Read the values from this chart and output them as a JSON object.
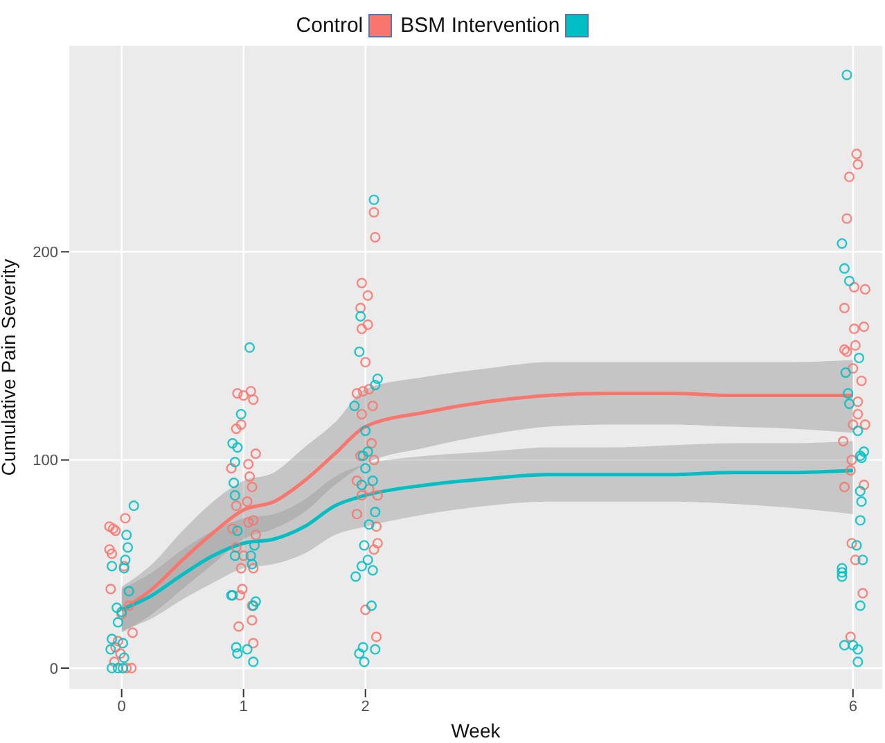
{
  "chart_data": {
    "type": "scatter",
    "xlabel": "Week",
    "ylabel": "Cumulative Pain Severity",
    "xlim": [
      -0.43,
      6.24
    ],
    "ylim": [
      -10,
      299
    ],
    "xticks": [
      0,
      1,
      2,
      6
    ],
    "yticks": [
      0,
      100,
      200
    ],
    "grid": true,
    "legend": "top",
    "marker": "circle",
    "series": [
      {
        "name": "Control",
        "color": "#f8766d",
        "x": [
          0.03,
          -0.1,
          -0.07,
          -0.05,
          -0.1,
          -0.08,
          0.02,
          -0.09,
          0.06,
          0,
          0.09,
          -0.03,
          -0.05,
          -0.01,
          -0.06,
          0.08,
          0.04,
          0.95,
          1.06,
          1,
          1.08,
          0.98,
          0.94,
          1.1,
          0.9,
          1.04,
          1.05,
          1.07,
          1.03,
          0.94,
          1.08,
          1.04,
          0.91,
          1.1,
          0.94,
          1,
          1.08,
          0.98,
          0.99,
          0.97,
          1.07,
          1.07,
          0.96,
          1.08,
          2.07,
          2.08,
          1.97,
          2.02,
          1.96,
          1.97,
          2.02,
          2,
          1.93,
          1.98,
          2.03,
          2.06,
          1.97,
          2.05,
          1.96,
          2.07,
          1.93,
          2.03,
          1.97,
          2.1,
          1.93,
          2.09,
          2.1,
          2.07,
          2,
          2.09,
          6.03,
          6.04,
          5.97,
          5.95,
          6.01,
          6.1,
          5.93,
          6.01,
          6.09,
          5.93,
          5.95,
          6.02,
          6,
          6.07,
          6.04,
          6.04,
          6,
          6.1,
          5.92,
          5.99,
          6.09,
          5.98,
          5.93,
          5.99,
          6.02,
          6.08,
          5.98
        ],
        "values": [
          72,
          68,
          67,
          66,
          57,
          55,
          49,
          38,
          30,
          26,
          17,
          13,
          10,
          7,
          3,
          0,
          0,
          132,
          133,
          131,
          129,
          117,
          115,
          103,
          96,
          98,
          92,
          87,
          80,
          78,
          71,
          70,
          67,
          64,
          58,
          54,
          48,
          48,
          38,
          35,
          30,
          23,
          20,
          12,
          219,
          207,
          185,
          179,
          173,
          163,
          165,
          147,
          132,
          133,
          134,
          126,
          122,
          108,
          102,
          100,
          90,
          86,
          83,
          83,
          74,
          68,
          60,
          57,
          28,
          15,
          247,
          242,
          236,
          216,
          183,
          182,
          173,
          163,
          164,
          153,
          152,
          155,
          144,
          138,
          128,
          122,
          117,
          117,
          109,
          100,
          88,
          95,
          87,
          60,
          52,
          36,
          15
        ]
      },
      {
        "name": "BSM Intervention",
        "color": "#00bfc4",
        "x": [
          0.1,
          0.04,
          0.05,
          0.03,
          -0.08,
          0.02,
          0.06,
          -0.04,
          0,
          -0.03,
          -0.08,
          0.01,
          -0.09,
          0.02,
          -0.08,
          -0.03,
          0.01,
          1.05,
          0.98,
          0.91,
          0.95,
          0.93,
          0.92,
          0.93,
          0.95,
          1.09,
          0.93,
          1.06,
          1.07,
          0.91,
          0.9,
          1.1,
          1.08,
          0.94,
          0.95,
          1.03,
          1.08,
          2.07,
          1.96,
          1.95,
          2.1,
          2.08,
          1.91,
          2,
          2.02,
          1.98,
          2,
          2.06,
          1.97,
          2.08,
          2.03,
          1.99,
          2.02,
          1.97,
          2.06,
          1.92,
          2.05,
          1.98,
          1.95,
          2.08,
          1.99,
          5.95,
          5.91,
          5.93,
          5.97,
          6.05,
          5.94,
          5.96,
          5.97,
          6.04,
          6.06,
          6.09,
          6.07,
          6.06,
          6.07,
          6.06,
          6.03,
          6.08,
          5.91,
          5.91,
          5.91,
          6.06,
          5.93,
          6,
          6.04,
          6.04
        ],
        "values": [
          78,
          64,
          58,
          52,
          49,
          48,
          37,
          29,
          27,
          22,
          14,
          12,
          9,
          5,
          0,
          0,
          0,
          154,
          122,
          108,
          106,
          99,
          89,
          83,
          66,
          59,
          54,
          54,
          50,
          35,
          35,
          32,
          30,
          10,
          7,
          9,
          3,
          225,
          169,
          152,
          139,
          136,
          126,
          114,
          104,
          102,
          96,
          90,
          88,
          75,
          69,
          59,
          52,
          49,
          47,
          44,
          30,
          10,
          7,
          9,
          3,
          285,
          204,
          192,
          186,
          149,
          142,
          132,
          127,
          114,
          102,
          104,
          101,
          85,
          80,
          71,
          59,
          52,
          48,
          46,
          44,
          30,
          11,
          11,
          9,
          3
        ]
      },
      {
        "type": "line",
        "marker": "none",
        "color": "#f8766d",
        "x": [
          0,
          0.25,
          0.5,
          0.75,
          1,
          1.25,
          1.5,
          1.75,
          2,
          2.5,
          3,
          3.5,
          4,
          4.5,
          5,
          5.5,
          6
        ],
        "values": [
          28,
          38,
          52,
          65,
          76,
          80,
          90,
          103,
          116,
          123,
          128,
          131,
          132,
          132,
          131,
          131,
          131
        ],
        "lower": [
          17,
          26,
          38,
          50,
          62,
          67,
          75,
          88,
          98,
          106,
          112,
          116,
          117,
          117,
          116,
          115,
          113
        ],
        "upper": [
          39,
          50,
          66,
          80,
          90,
          94,
          106,
          118,
          134,
          140,
          144,
          147,
          147,
          147,
          147,
          147,
          148
        ]
      },
      {
        "type": "line",
        "marker": "none",
        "color": "#00bfc4",
        "x": [
          0,
          0.25,
          0.5,
          0.75,
          1,
          1.25,
          1.5,
          1.75,
          2,
          2.5,
          3,
          3.5,
          4,
          4.5,
          5,
          5.5,
          6
        ],
        "values": [
          28,
          35,
          45,
          54,
          60,
          62,
          68,
          78,
          83,
          88,
          91,
          93,
          93,
          93,
          94,
          94,
          95
        ],
        "lower": [
          18,
          24,
          33,
          41,
          48,
          50,
          55,
          64,
          68,
          74,
          78,
          80,
          80,
          80,
          79,
          77,
          74
        ],
        "upper": [
          38,
          46,
          57,
          66,
          72,
          74,
          81,
          92,
          98,
          102,
          104,
          106,
          106,
          107,
          108,
          108,
          109
        ]
      }
    ]
  }
}
